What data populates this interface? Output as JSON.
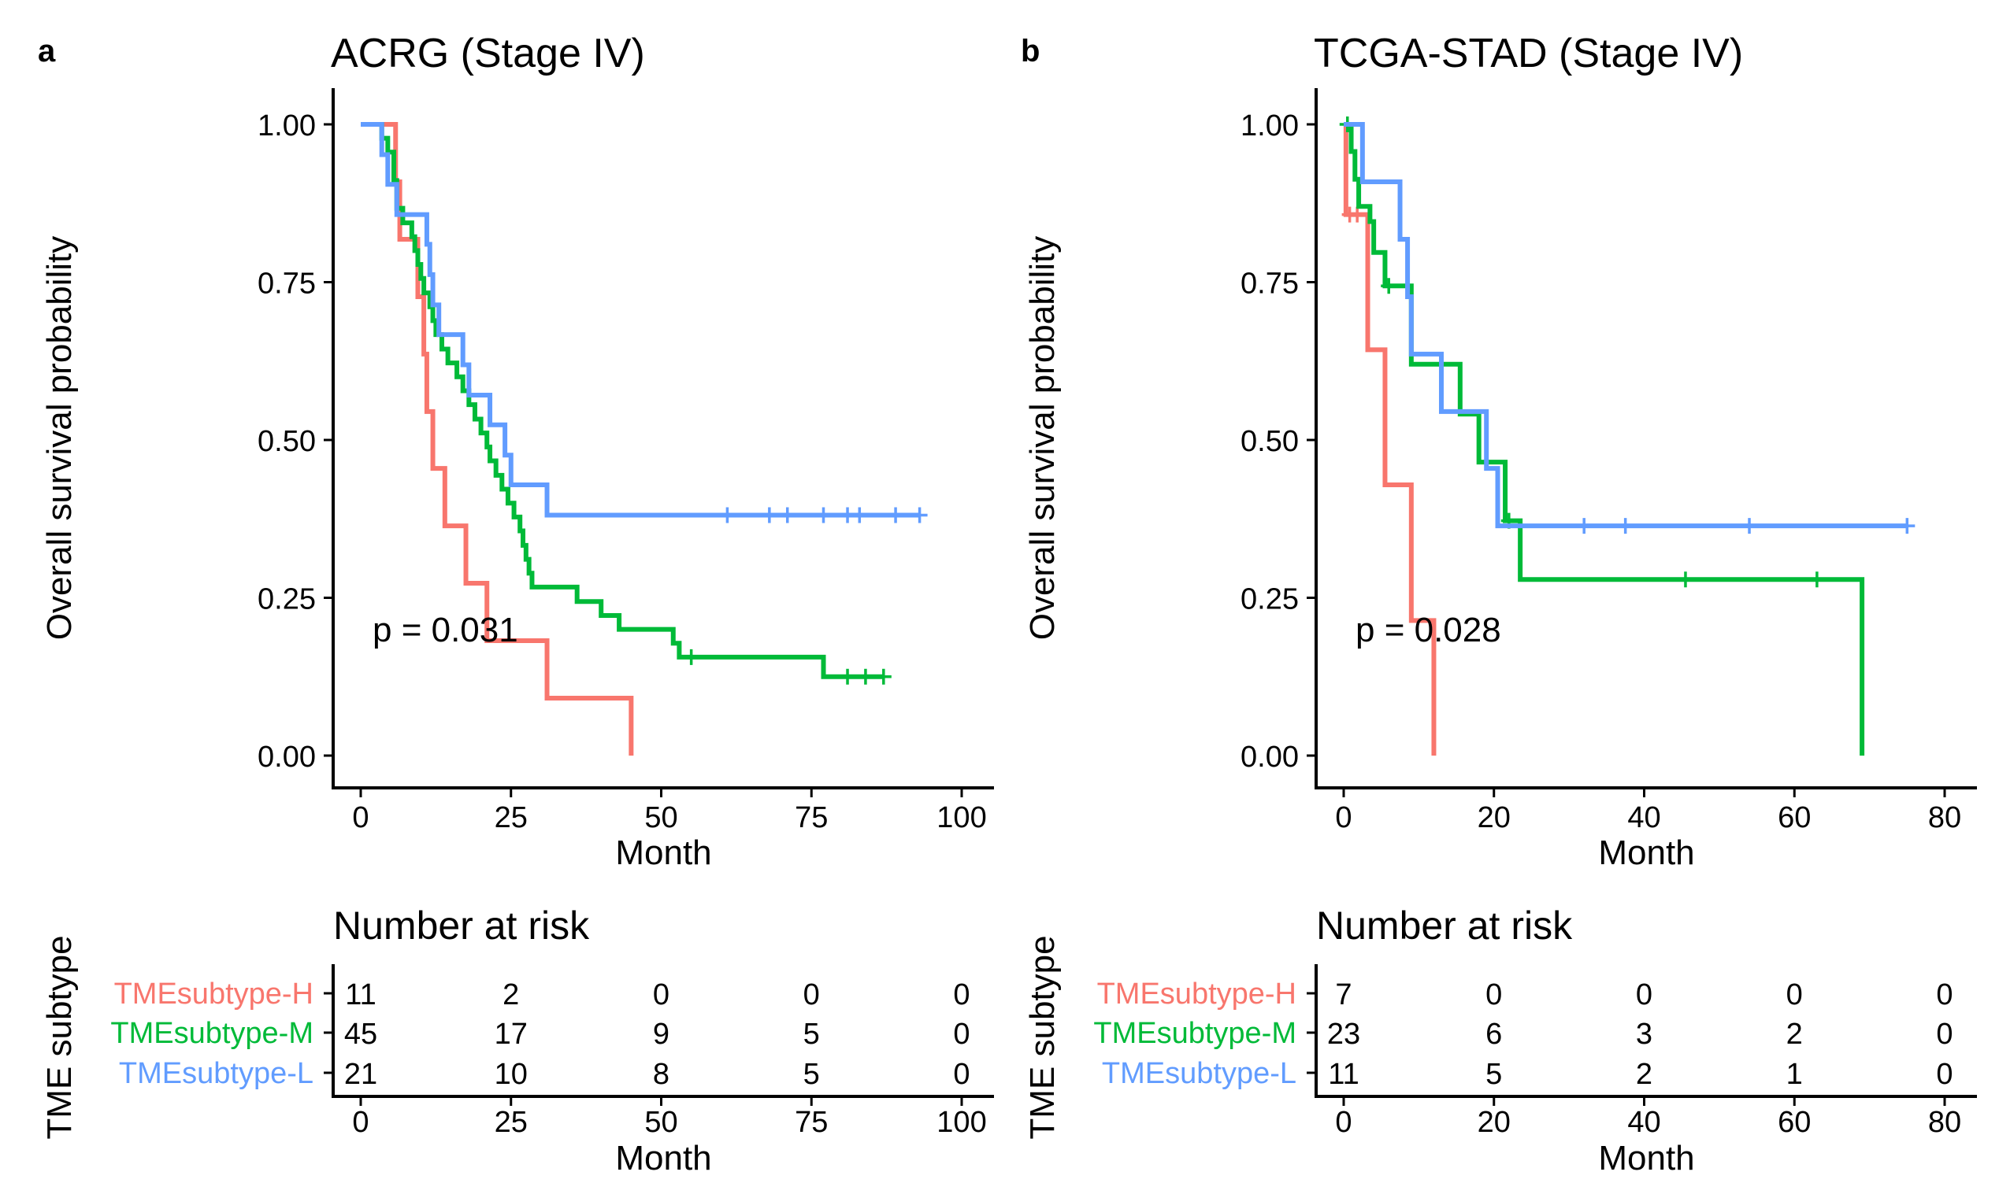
{
  "colors": {
    "H": "#F8766D",
    "M": "#00BA38",
    "L": "#619CFF"
  },
  "chart_data": [
    {
      "type": "line",
      "panel_label": "a",
      "title": "ACRG (Stage IV)",
      "xlabel": "Month",
      "ylabel": "Overall survival probability",
      "xlim": [
        0,
        100
      ],
      "ylim": [
        0,
        1
      ],
      "xticks": [
        "0",
        "25",
        "50",
        "75",
        "100"
      ],
      "yticks": [
        "0.00",
        "0.25",
        "0.50",
        "0.75",
        "1.00"
      ],
      "pvalue": "p = 0.031",
      "series": [
        {
          "key": "H",
          "name": "TMEsubtype-H",
          "steps": [
            [
              0,
              1.0
            ],
            [
              5.8,
              0.909
            ],
            [
              6.5,
              0.818
            ],
            [
              9.5,
              0.727
            ],
            [
              10.5,
              0.636
            ],
            [
              11,
              0.545
            ],
            [
              12,
              0.455
            ],
            [
              14,
              0.364
            ],
            [
              17.5,
              0.273
            ],
            [
              21,
              0.182
            ],
            [
              31,
              0.091
            ],
            [
              45,
              0.0
            ]
          ],
          "end": 45,
          "censor": []
        },
        {
          "key": "M",
          "name": "TMEsubtype-M",
          "steps": [
            [
              0,
              1.0
            ],
            [
              3.5,
              0.978
            ],
            [
              4.5,
              0.956
            ],
            [
              5.5,
              0.911
            ],
            [
              6,
              0.867
            ],
            [
              7,
              0.844
            ],
            [
              8.5,
              0.822
            ],
            [
              9,
              0.8
            ],
            [
              9.5,
              0.778
            ],
            [
              10,
              0.756
            ],
            [
              10.5,
              0.733
            ],
            [
              11.5,
              0.711
            ],
            [
              12,
              0.689
            ],
            [
              12.5,
              0.667
            ],
            [
              13.5,
              0.644
            ],
            [
              14.5,
              0.622
            ],
            [
              16,
              0.6
            ],
            [
              17,
              0.578
            ],
            [
              18,
              0.556
            ],
            [
              19,
              0.533
            ],
            [
              20,
              0.511
            ],
            [
              21,
              0.489
            ],
            [
              21.5,
              0.467
            ],
            [
              22.5,
              0.444
            ],
            [
              23.5,
              0.422
            ],
            [
              24.5,
              0.4
            ],
            [
              25.5,
              0.378
            ],
            [
              26.5,
              0.356
            ],
            [
              27,
              0.333
            ],
            [
              27.5,
              0.311
            ],
            [
              28,
              0.289
            ],
            [
              28.5,
              0.267
            ],
            [
              36,
              0.244
            ],
            [
              40,
              0.222
            ],
            [
              43,
              0.2
            ],
            [
              52,
              0.178
            ],
            [
              53,
              0.156
            ],
            [
              77,
              0.125
            ]
          ],
          "end": 87,
          "censor": [
            55,
            81,
            84,
            87
          ]
        },
        {
          "key": "L",
          "name": "TMEsubtype-L",
          "steps": [
            [
              0,
              1.0
            ],
            [
              3.5,
              0.952
            ],
            [
              4.5,
              0.905
            ],
            [
              6,
              0.857
            ],
            [
              11,
              0.81
            ],
            [
              11.5,
              0.762
            ],
            [
              12,
              0.714
            ],
            [
              13,
              0.667
            ],
            [
              17,
              0.619
            ],
            [
              18,
              0.571
            ],
            [
              21.5,
              0.524
            ],
            [
              24,
              0.476
            ],
            [
              25,
              0.429
            ],
            [
              31,
              0.381
            ]
          ],
          "end": 93,
          "censor": [
            61,
            68,
            71,
            77,
            81,
            83,
            89,
            93
          ]
        }
      ],
      "risk_table": {
        "title": "Number at risk",
        "ylabel": "TME subtype",
        "xlabel": "Month",
        "times": [
          "0",
          "25",
          "50",
          "75",
          "100"
        ],
        "rows": [
          {
            "key": "H",
            "label": "TMEsubtype-H",
            "values": [
              "11",
              "2",
              "0",
              "0",
              "0"
            ]
          },
          {
            "key": "M",
            "label": "TMEsubtype-M",
            "values": [
              "45",
              "17",
              "9",
              "5",
              "0"
            ]
          },
          {
            "key": "L",
            "label": "TMEsubtype-L",
            "values": [
              "21",
              "10",
              "8",
              "5",
              "0"
            ]
          }
        ]
      }
    },
    {
      "type": "line",
      "panel_label": "b",
      "title": "TCGA-STAD (Stage IV)",
      "xlabel": "Month",
      "ylabel": "Overall survival probability",
      "xlim": [
        0,
        80
      ],
      "ylim": [
        0,
        1
      ],
      "xticks": [
        "0",
        "20",
        "40",
        "60",
        "80"
      ],
      "yticks": [
        "0.00",
        "0.25",
        "0.50",
        "0.75",
        "1.00"
      ],
      "pvalue": "p = 0.028",
      "series": [
        {
          "key": "H",
          "name": "TMEsubtype-H",
          "steps": [
            [
              0,
              1.0
            ],
            [
              0.3,
              0.857
            ],
            [
              2.8,
              0.857
            ],
            [
              3.2,
              0.643
            ],
            [
              5.5,
              0.429
            ],
            [
              9,
              0.214
            ],
            [
              12,
              0.0
            ]
          ],
          "end": 12,
          "censor": [
            0.8,
            1.8
          ]
        },
        {
          "key": "M",
          "name": "TMEsubtype-M",
          "steps": [
            [
              0,
              1.0
            ],
            [
              1,
              0.957
            ],
            [
              1.5,
              0.913
            ],
            [
              2,
              0.87
            ],
            [
              3.5,
              0.846
            ],
            [
              4,
              0.797
            ],
            [
              5.5,
              0.744
            ],
            [
              9,
              0.62
            ],
            [
              13.5,
              0.62
            ],
            [
              15.5,
              0.541
            ],
            [
              18,
              0.465
            ],
            [
              21.5,
              0.372
            ],
            [
              23.5,
              0.279
            ],
            [
              69,
              0.0
            ]
          ],
          "end": 69,
          "censor": [
            0.5,
            6,
            13,
            22,
            45.5,
            63
          ]
        },
        {
          "key": "L",
          "name": "TMEsubtype-L",
          "steps": [
            [
              0,
              1.0
            ],
            [
              2.5,
              0.909
            ],
            [
              7.5,
              0.818
            ],
            [
              8.5,
              0.727
            ],
            [
              9,
              0.636
            ],
            [
              13,
              0.545
            ],
            [
              19,
              0.455
            ],
            [
              20.5,
              0.364
            ]
          ],
          "end": 75,
          "censor": [
            32,
            37.5,
            54,
            75
          ]
        }
      ],
      "risk_table": {
        "title": "Number at risk",
        "ylabel": "TME subtype",
        "xlabel": "Month",
        "times": [
          "0",
          "20",
          "40",
          "60",
          "80"
        ],
        "rows": [
          {
            "key": "H",
            "label": "TMEsubtype-H",
            "values": [
              "7",
              "0",
              "0",
              "0",
              "0"
            ]
          },
          {
            "key": "M",
            "label": "TMEsubtype-M",
            "values": [
              "23",
              "6",
              "3",
              "2",
              "0"
            ]
          },
          {
            "key": "L",
            "label": "TMEsubtype-L",
            "values": [
              "11",
              "5",
              "2",
              "1",
              "0"
            ]
          }
        ]
      }
    }
  ]
}
